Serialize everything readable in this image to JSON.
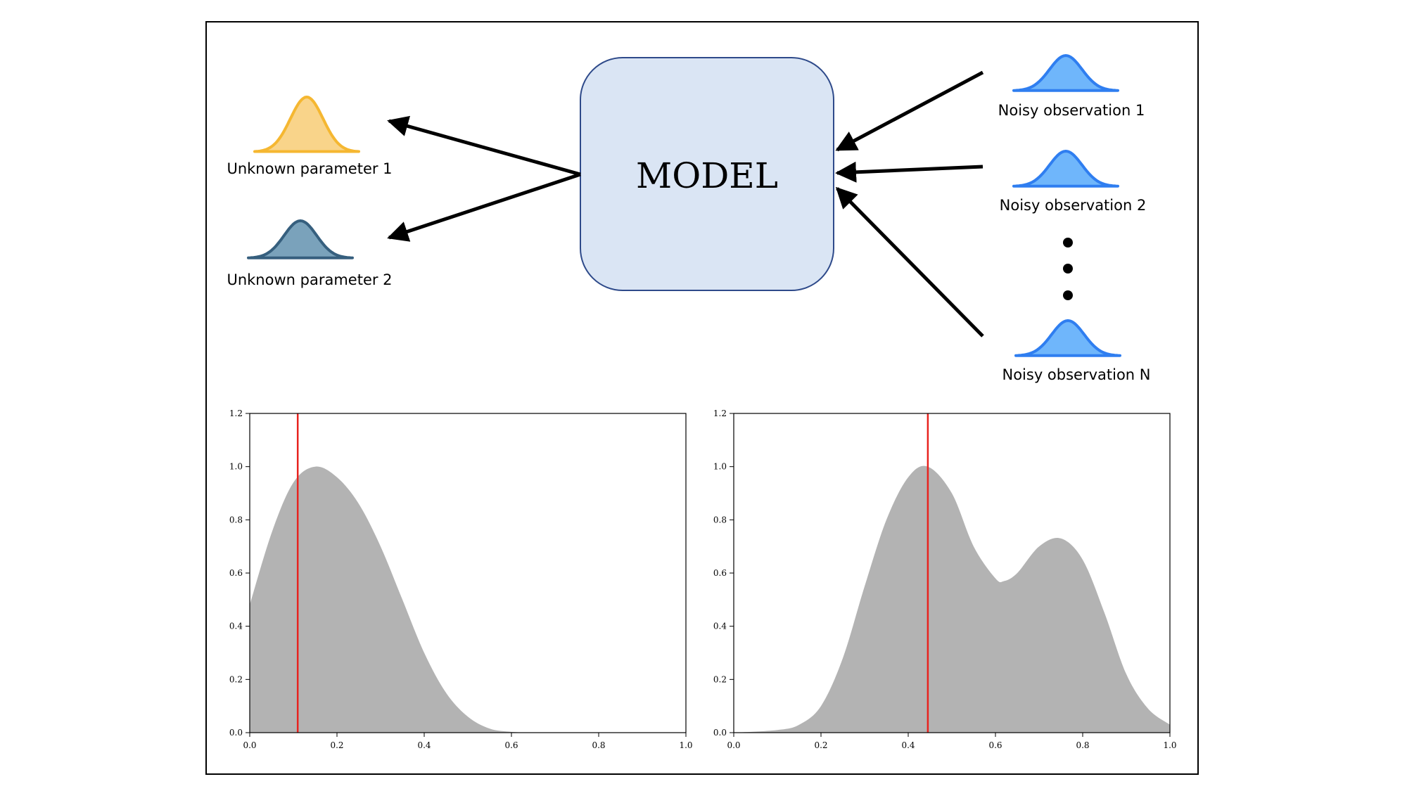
{
  "model": {
    "label": "MODEL"
  },
  "parameters": [
    {
      "label": "Unknown parameter 1",
      "color": "#f5b731",
      "fill": "#f9d48a"
    },
    {
      "label": "Unknown parameter 2",
      "color": "#365f7e",
      "fill": "#7aa2bb"
    }
  ],
  "observations": [
    {
      "label": "Noisy observation 1",
      "color": "#2f7ef0",
      "fill": "#6fb6fb"
    },
    {
      "label": "Noisy observation 2",
      "color": "#2f7ef0",
      "fill": "#6fb6fb"
    },
    {
      "label": "Noisy observation N",
      "color": "#2f7ef0",
      "fill": "#6fb6fb"
    }
  ],
  "chart_data": [
    {
      "type": "area",
      "title": "",
      "xlabel": "",
      "ylabel": "",
      "xlim": [
        0,
        1
      ],
      "ylim": [
        0,
        1.2
      ],
      "xticks": [
        "0.0",
        "0.2",
        "0.4",
        "0.6",
        "0.8",
        "1.0"
      ],
      "yticks": [
        "0.0",
        "0.2",
        "0.4",
        "0.6",
        "0.8",
        "1.0",
        "1.2"
      ],
      "fill_color": "#b3b3b3",
      "marker": {
        "x": 0.11,
        "color": "#e8231f"
      },
      "x": [
        0,
        0.05,
        0.1,
        0.15,
        0.2,
        0.25,
        0.3,
        0.35,
        0.4,
        0.45,
        0.5,
        0.55,
        0.6,
        0.65,
        0.7,
        1.0
      ],
      "y": [
        0.48,
        0.75,
        0.94,
        1.0,
        0.96,
        0.86,
        0.7,
        0.5,
        0.3,
        0.15,
        0.06,
        0.015,
        0.003,
        0.0,
        0.0,
        0.0
      ]
    },
    {
      "type": "area",
      "title": "",
      "xlabel": "",
      "ylabel": "",
      "xlim": [
        0,
        1
      ],
      "ylim": [
        0,
        1.2
      ],
      "xticks": [
        "0.0",
        "0.2",
        "0.4",
        "0.6",
        "0.8",
        "1.0"
      ],
      "yticks": [
        "0.0",
        "0.2",
        "0.4",
        "0.6",
        "0.8",
        "1.0",
        "1.2"
      ],
      "fill_color": "#b3b3b3",
      "marker": {
        "x": 0.445,
        "color": "#e8231f"
      },
      "x": [
        0,
        0.1,
        0.15,
        0.2,
        0.25,
        0.3,
        0.35,
        0.4,
        0.445,
        0.5,
        0.55,
        0.6,
        0.62,
        0.65,
        0.7,
        0.75,
        0.8,
        0.85,
        0.9,
        0.95,
        1.0
      ],
      "y": [
        0.0,
        0.01,
        0.03,
        0.1,
        0.28,
        0.55,
        0.8,
        0.96,
        1.0,
        0.9,
        0.7,
        0.58,
        0.57,
        0.6,
        0.7,
        0.73,
        0.65,
        0.45,
        0.22,
        0.09,
        0.03
      ]
    }
  ]
}
